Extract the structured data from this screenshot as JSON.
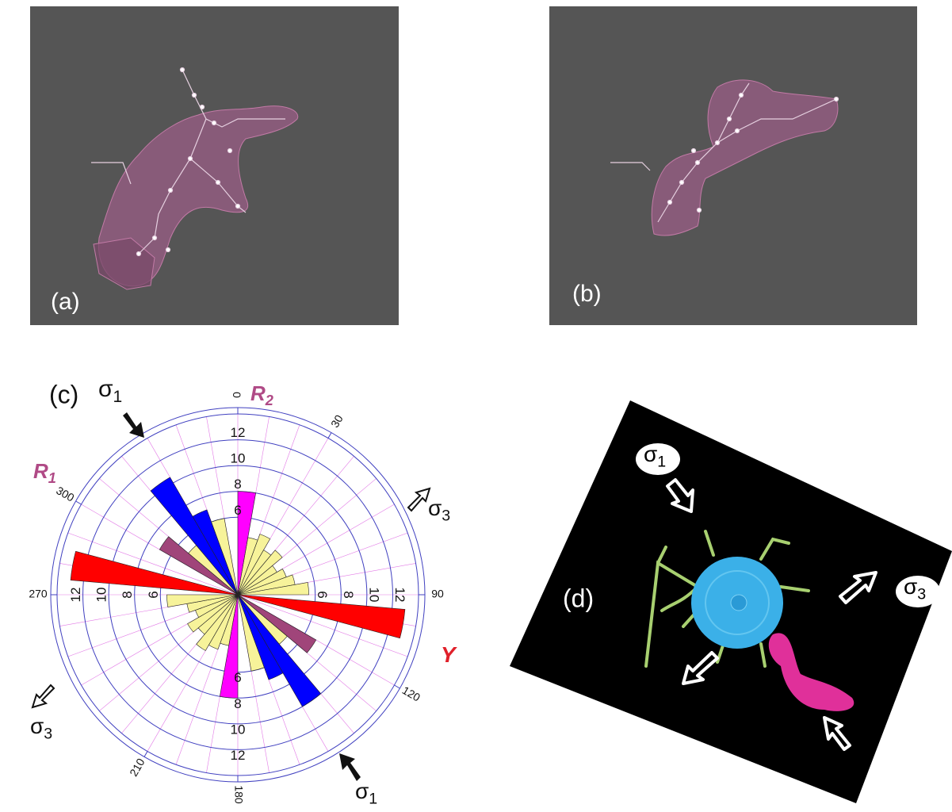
{
  "panels": [
    {
      "label": "(a)"
    },
    {
      "label": "(b)"
    },
    {
      "label": "(c)"
    },
    {
      "label": "(d)",
      "annotations": [
        {
          "text": "σ",
          "sub": "1"
        },
        {
          "text": "σ",
          "sub": "3"
        }
      ]
    }
  ],
  "chart_data": {
    "type": "rose",
    "rlim": [
      0,
      14
    ],
    "rticks": [
      6,
      8,
      10,
      12
    ],
    "angle_ticks": [
      0,
      30,
      90,
      120,
      180,
      210,
      270,
      300
    ],
    "bin_width": 10,
    "series": [
      {
        "color": "#f7f39a",
        "angles": [
          15,
          25,
          35,
          45,
          55,
          65,
          75,
          85,
          135,
          165,
          195,
          205,
          215,
          225,
          235,
          245,
          255,
          265,
          315,
          345
        ],
        "values": [
          4.5,
          5,
          4,
          4.5,
          3.5,
          4,
          4.5,
          5.5,
          5,
          6,
          4,
          4.5,
          5,
          4,
          4.5,
          3.5,
          4,
          5.5,
          5,
          6
        ]
      },
      {
        "color": "#ff00ff",
        "angles": [
          5,
          185
        ],
        "values": [
          8,
          8
        ]
      },
      {
        "color": "#0000ff",
        "angles": [
          325,
          335,
          145,
          155
        ],
        "values": [
          10.5,
          7,
          10,
          7
        ]
      },
      {
        "color": "#a0457a",
        "angles": [
          305,
          125
        ],
        "values": [
          7,
          7
        ]
      },
      {
        "color": "#ff0000",
        "angles": [
          280,
          100
        ],
        "values": [
          13,
          13
        ]
      }
    ],
    "annotations": [
      {
        "text": "R",
        "sub": "2",
        "color": "#b04a86"
      },
      {
        "text": "R",
        "sub": "1",
        "color": "#b04a86"
      },
      {
        "text": "Y",
        "color": "#e0202a"
      },
      {
        "text": "σ",
        "sub": "1"
      },
      {
        "text": "σ",
        "sub": "3"
      },
      {
        "text": "σ",
        "sub": "3"
      },
      {
        "text": "σ",
        "sub": "1"
      }
    ]
  }
}
